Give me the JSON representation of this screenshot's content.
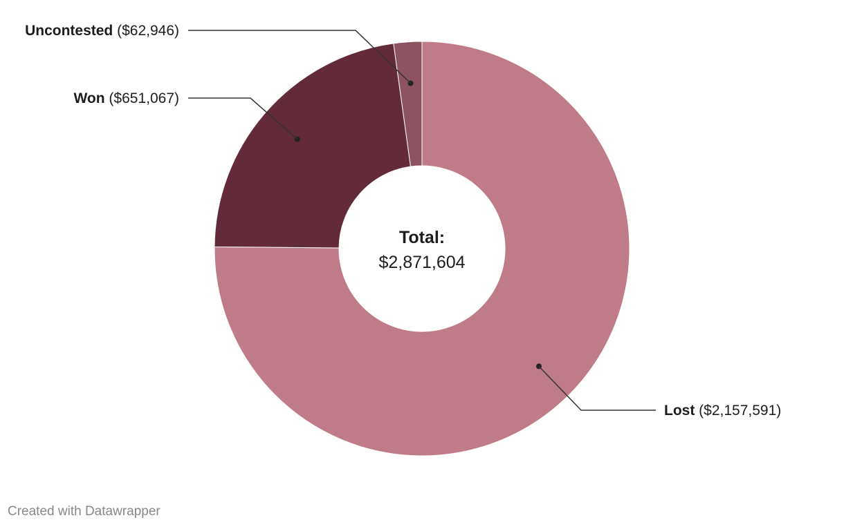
{
  "chart_data": {
    "type": "pie",
    "donut": true,
    "slices": [
      {
        "name": "Lost",
        "value": 2157591,
        "value_label": "($2,157,591)",
        "color": "#bf7c88"
      },
      {
        "name": "Won",
        "value": 651067,
        "value_label": "($651,067)",
        "color": "#632a39"
      },
      {
        "name": "Uncontested",
        "value": 62946,
        "value_label": "($62,946)",
        "color": "#8e5360"
      }
    ],
    "center_title": "Total:",
    "center_value": "$2,871,604",
    "total": 2871604
  },
  "footer": "Created with Datawrapper"
}
